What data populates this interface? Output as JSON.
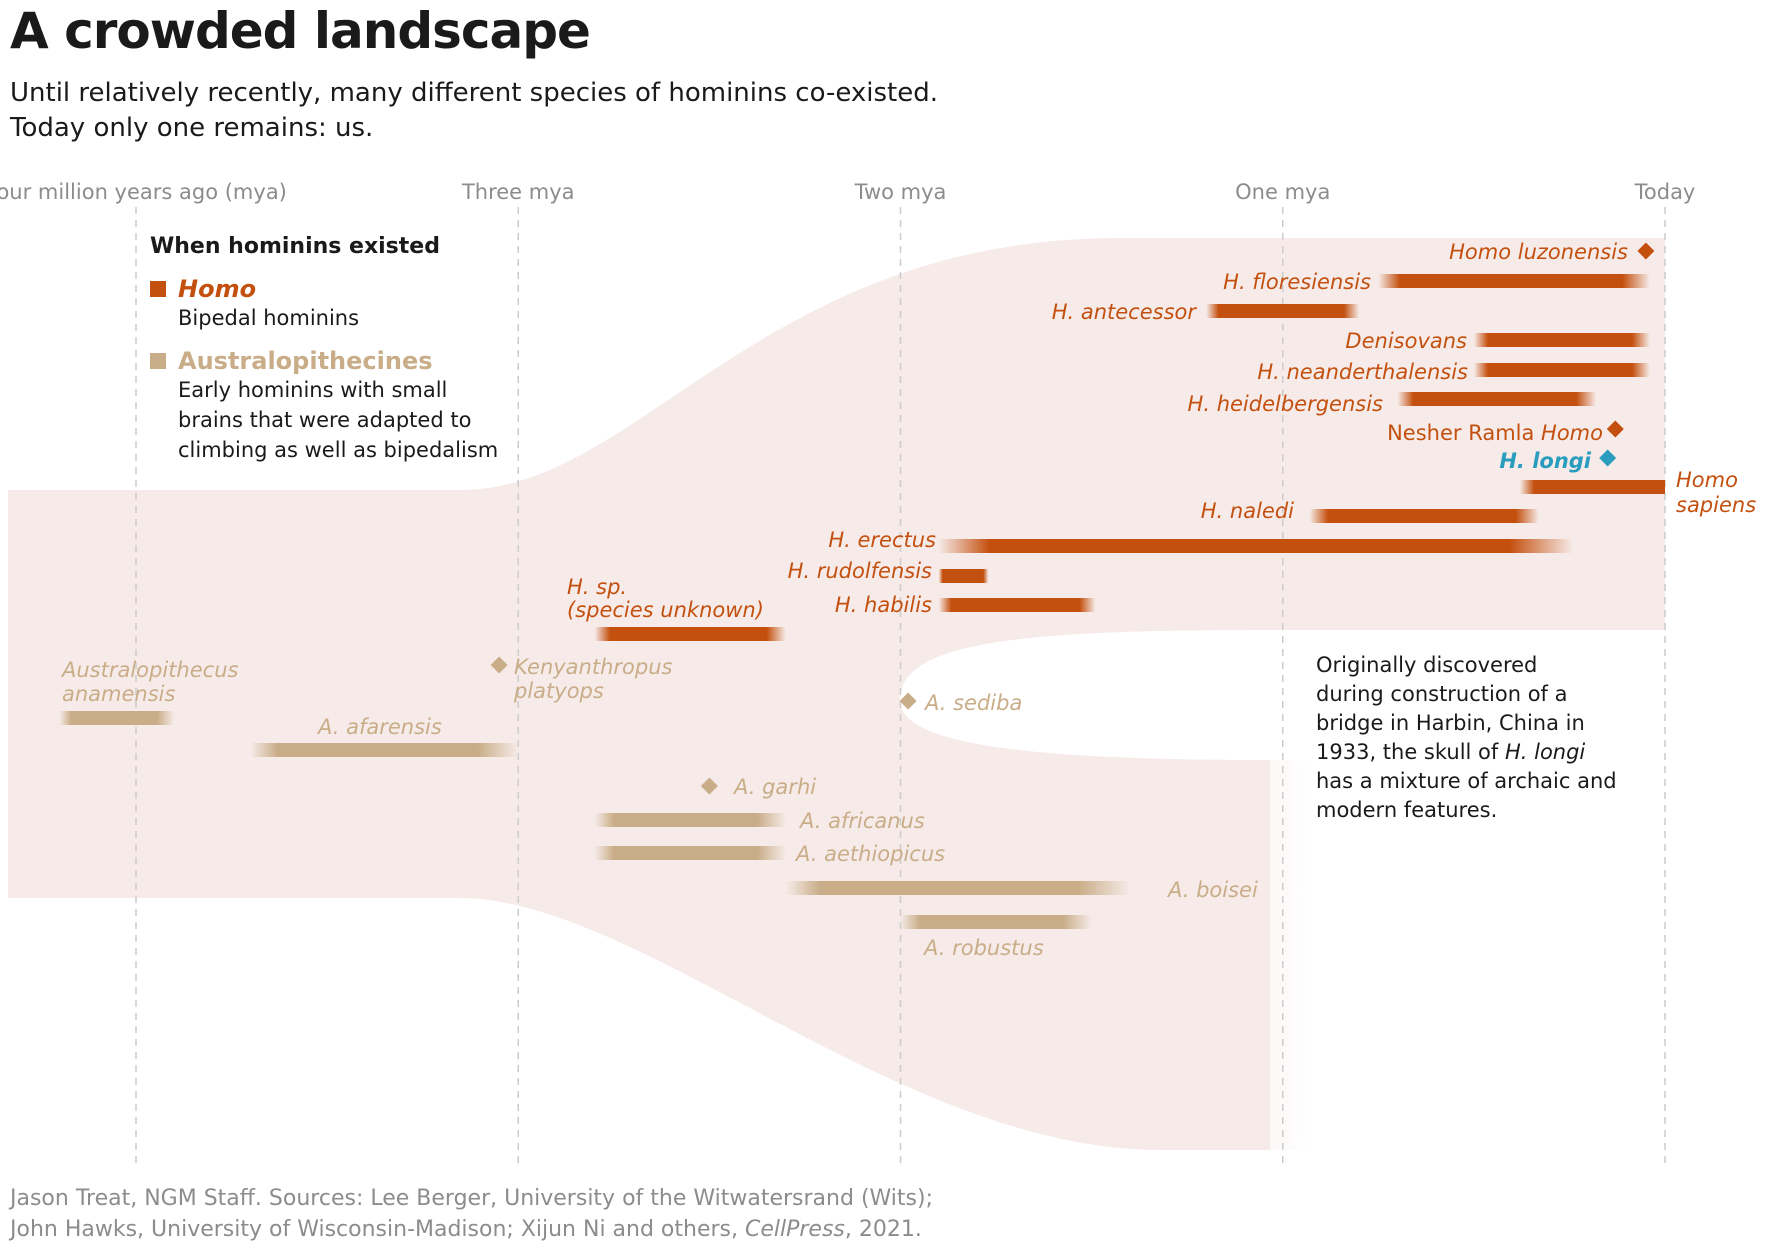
{
  "header": {
    "title": "A crowded landscape",
    "subtitle_line1": "Until relatively recently, many different species of hominins co-existed.",
    "subtitle_line2": "Today only one remains: us."
  },
  "legend": {
    "title": "When hominins existed",
    "homo_label": "Homo",
    "homo_desc": "Bipedal hominins",
    "aus_label": "Australopithecines",
    "aus_desc_lines": [
      "Early hominins with small",
      "brains that were adapted to",
      "climbing as well as bipedalism"
    ]
  },
  "annotation": {
    "lines": [
      "Originally discovered",
      "during construction of a",
      "bridge in Harbin, China in"
    ],
    "line4_pre": "1933, the skull of ",
    "line4_italic": "H. longi",
    "line5": "has a mixture of archaic and",
    "line6": "modern features."
  },
  "credit": {
    "line1": "Jason Treat, NGM Staff. Sources: Lee Berger, University of the Witwatersrand (Wits);",
    "line2_pre": "John Hawks, University of Wisconsin-Madison; Xijun Ni and others, ",
    "line2_italic": "CellPress",
    "line2_post": ", 2021."
  },
  "colors": {
    "homo": "#c4500f",
    "australopithecine": "#c9ad88",
    "longi": "#2a9dbf",
    "band": "#f6ebe8",
    "gridline": "#cccccc"
  },
  "chart_data": {
    "type": "timeline",
    "x_unit": "million years ago",
    "x_range": [
      4.0,
      0.0
    ],
    "ticks": [
      {
        "value": 4,
        "label": "Four million years ago (mya)"
      },
      {
        "value": 3,
        "label": "Three mya"
      },
      {
        "value": 2,
        "label": "Two mya"
      },
      {
        "value": 1,
        "label": "One mya"
      },
      {
        "value": 0,
        "label": "Today"
      }
    ],
    "species": [
      {
        "id": "luzonensis",
        "lines": [
          "Homo luzonensis"
        ],
        "group": "homo",
        "kind": "point",
        "at": 0.05
      },
      {
        "id": "floresiensis",
        "lines": [
          "H. floresiensis"
        ],
        "group": "homo",
        "kind": "range",
        "start": 0.75,
        "end": 0.04
      },
      {
        "id": "antecessor",
        "lines": [
          "H. antecessor"
        ],
        "group": "homo",
        "kind": "range",
        "start": 1.2,
        "end": 0.8
      },
      {
        "id": "denisovans",
        "lines": [
          "Denisovans"
        ],
        "group": "homo",
        "kind": "range",
        "start": 0.5,
        "end": 0.04
      },
      {
        "id": "neanderthalensis",
        "lines": [
          "H. neanderthalensis"
        ],
        "group": "homo",
        "kind": "range",
        "start": 0.5,
        "end": 0.04
      },
      {
        "id": "heidelbergensis",
        "lines": [
          "H. heidelbergensis"
        ],
        "group": "homo",
        "kind": "range",
        "start": 0.7,
        "end": 0.18
      },
      {
        "id": "nesher",
        "lines": [
          "Nesher Ramla "
        ],
        "italic": "Homo",
        "group": "homo",
        "kind": "point",
        "at": 0.13
      },
      {
        "id": "longi",
        "lines": [
          "H. longi"
        ],
        "group": "longi",
        "kind": "point",
        "at": 0.15
      },
      {
        "id": "sapiens",
        "lines": [
          "Homo",
          "sapiens"
        ],
        "group": "homo",
        "kind": "range",
        "start": 0.38,
        "end": 0.0
      },
      {
        "id": "naledi",
        "lines": [
          "H. naledi"
        ],
        "group": "homo",
        "kind": "range",
        "start": 0.93,
        "end": 0.33
      },
      {
        "id": "erectus",
        "lines": [
          "H. erectus"
        ],
        "group": "homo",
        "kind": "range",
        "start": 1.9,
        "end": 0.24
      },
      {
        "id": "rudolfensis",
        "lines": [
          "H. rudolfensis"
        ],
        "group": "homo",
        "kind": "range",
        "start": 1.9,
        "end": 1.77
      },
      {
        "id": "habilis",
        "lines": [
          "H. habilis"
        ],
        "group": "homo",
        "kind": "range",
        "start": 1.9,
        "end": 1.49
      },
      {
        "id": "hsp",
        "lines": [
          "H. sp.",
          "(species unknown)"
        ],
        "group": "homo",
        "kind": "range",
        "start": 2.8,
        "end": 2.3
      },
      {
        "id": "anamensis",
        "lines": [
          "Australopithecus",
          "anamensis"
        ],
        "group": "aus",
        "kind": "range",
        "start": 4.2,
        "end": 3.9
      },
      {
        "id": "kenyanthropus",
        "lines": [
          "Kenyanthropus",
          "platyops"
        ],
        "group": "aus",
        "kind": "point",
        "at": 3.05
      },
      {
        "id": "afarensis",
        "lines": [
          "A. afarensis"
        ],
        "group": "aus",
        "kind": "range",
        "start": 3.7,
        "end": 3.0
      },
      {
        "id": "sediba",
        "lines": [
          "A. sediba"
        ],
        "group": "aus",
        "kind": "point",
        "at": 1.98
      },
      {
        "id": "garhi",
        "lines": [
          "A. garhi"
        ],
        "group": "aus",
        "kind": "point",
        "at": 2.5
      },
      {
        "id": "africanus",
        "lines": [
          "A. africanus"
        ],
        "group": "aus",
        "kind": "range",
        "start": 2.8,
        "end": 2.3
      },
      {
        "id": "aethiopicus",
        "lines": [
          "A. aethiopicus"
        ],
        "group": "aus",
        "kind": "range",
        "start": 2.8,
        "end": 2.3
      },
      {
        "id": "boisei",
        "lines": [
          "A. boisei"
        ],
        "group": "aus",
        "kind": "range",
        "start": 2.3,
        "end": 1.4
      },
      {
        "id": "robustus",
        "lines": [
          "A. robustus"
        ],
        "group": "aus",
        "kind": "range",
        "start": 2.0,
        "end": 1.5
      }
    ]
  }
}
